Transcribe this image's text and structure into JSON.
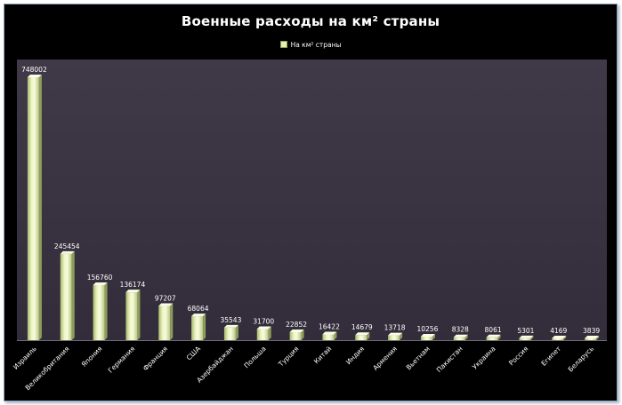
{
  "chart_data": {
    "type": "bar",
    "title": "Военные расходы на км² страны",
    "legend": {
      "position": "top-center"
    },
    "grid": false,
    "ylim": [
      0,
      748002
    ],
    "categories": [
      "Израиль",
      "Великобритания",
      "Япония",
      "Германия",
      "Франция",
      "США",
      "Азербайджан",
      "Польша",
      "Турция",
      "Китай",
      "Индия",
      "Армения",
      "Вьетнам",
      "Пакистан",
      "Украина",
      "Россия",
      "Египет",
      "Беларусь"
    ],
    "series": [
      {
        "name": "На км² страны",
        "values": [
          748002,
          245454,
          156760,
          136174,
          97207,
          68064,
          35543,
          31700,
          22852,
          16422,
          14679,
          13718,
          10256,
          8328,
          8061,
          5301,
          4169,
          3839
        ]
      }
    ],
    "colors": {
      "plot_background": "#3a3441",
      "chart_background": "#000000",
      "bar_light": "#f2f7cc",
      "bar_dark": "#b2c27a"
    }
  }
}
